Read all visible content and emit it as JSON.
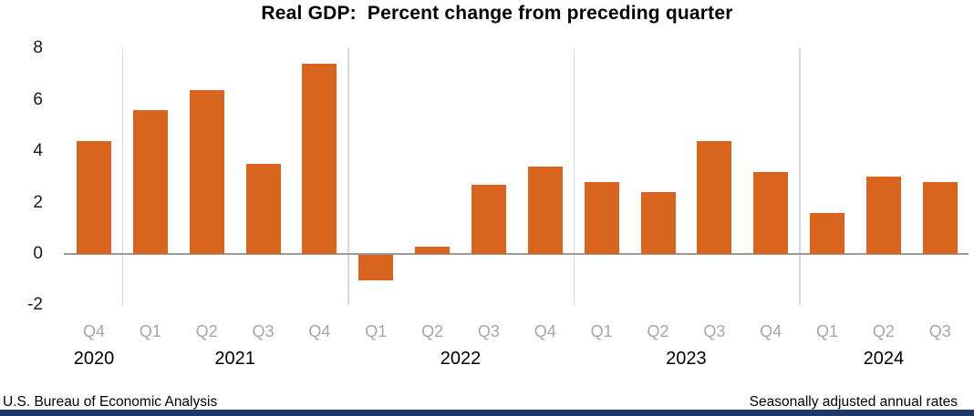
{
  "title": "Real GDP:  Percent change from preceding quarter",
  "footer": {
    "source": "U.S. Bureau of Economic Analysis",
    "note": "Seasonally adjusted annual rates"
  },
  "chart_data": {
    "type": "bar",
    "title": "Real GDP:  Percent change from preceding quarter",
    "categories": [
      "Q4",
      "Q1",
      "Q2",
      "Q3",
      "Q4",
      "Q1",
      "Q2",
      "Q3",
      "Q4",
      "Q1",
      "Q2",
      "Q3",
      "Q4",
      "Q1",
      "Q2",
      "Q3"
    ],
    "values": [
      4.4,
      5.6,
      6.4,
      3.5,
      7.4,
      -1.0,
      0.3,
      2.7,
      3.4,
      2.8,
      2.4,
      4.4,
      3.2,
      1.6,
      3.0,
      2.8
    ],
    "year_groups": [
      {
        "label": "2020",
        "quarters": [
          "Q4"
        ]
      },
      {
        "label": "2021",
        "quarters": [
          "Q1",
          "Q2",
          "Q3",
          "Q4"
        ]
      },
      {
        "label": "2022",
        "quarters": [
          "Q1",
          "Q2",
          "Q3",
          "Q4"
        ]
      },
      {
        "label": "2023",
        "quarters": [
          "Q1",
          "Q2",
          "Q3",
          "Q4"
        ]
      },
      {
        "label": "2024",
        "quarters": [
          "Q1",
          "Q2",
          "Q3"
        ]
      }
    ],
    "xlabel": "",
    "ylabel": "",
    "ylim": [
      -2,
      8
    ],
    "yticks": [
      8,
      6,
      4,
      2,
      0,
      -2
    ],
    "grid": "vertical year separator lines only; horizontal zero axis line",
    "legend": "none",
    "colors": {
      "bar": "#d8641e",
      "quarter_label": "#a6a6a6",
      "year_label": "#000000",
      "separator_line": "#d9d9d9",
      "axis_line": "#9a9a9a",
      "title": "#000000",
      "footer_bar": "#1f3864"
    }
  }
}
